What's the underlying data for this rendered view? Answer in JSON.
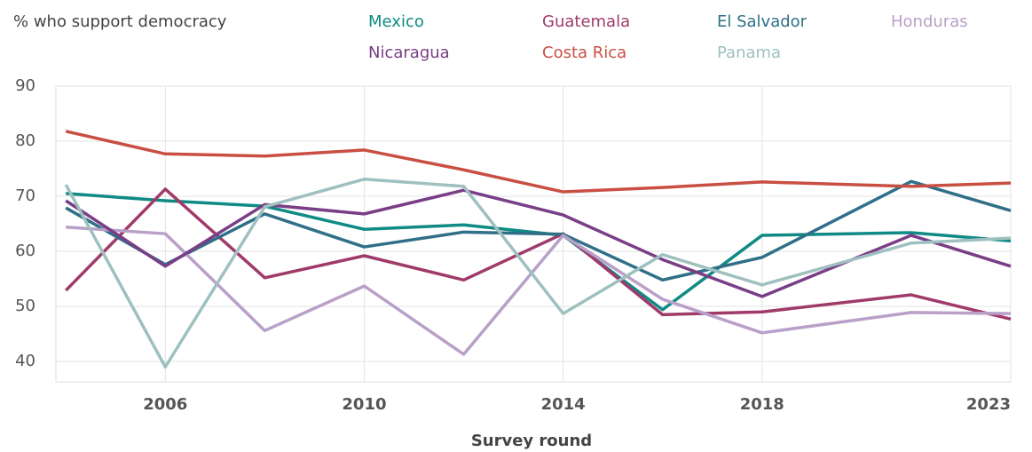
{
  "chart_data": {
    "type": "line",
    "y_axis_label": "% who support democracy",
    "x_axis_label": "Survey round",
    "x": [
      2004,
      2006,
      2008,
      2010,
      2012,
      2014,
      2016,
      2018,
      2021,
      2023
    ],
    "xlim": [
      2003.8,
      2023
    ],
    "xticks": [
      2006,
      2010,
      2014,
      2018,
      2023
    ],
    "ylim": [
      36.3,
      90
    ],
    "yticks": [
      40,
      50,
      60,
      70,
      80,
      90
    ],
    "grid": true,
    "legend": "top",
    "series": [
      {
        "name": "Mexico",
        "color": "#0f8a84",
        "values": [
          70.5,
          69.2,
          68.2,
          64,
          64.8,
          62.9,
          49.4,
          62.9,
          63.4,
          61.9
        ]
      },
      {
        "name": "Guatemala",
        "color": "#a03a6a",
        "values": [
          52.9,
          71.3,
          55.2,
          59.2,
          54.8,
          63.2,
          48.5,
          49,
          52.1,
          47.7
        ]
      },
      {
        "name": "El Salvador",
        "color": "#2f6f88",
        "values": [
          67.9,
          57.6,
          66.8,
          60.8,
          63.5,
          63.1,
          54.8,
          58.9,
          72.7,
          67.4
        ]
      },
      {
        "name": "Honduras",
        "color": "#b9a0c8",
        "values": [
          64.4,
          63.2,
          45.6,
          53.7,
          41.3,
          62.9,
          51.3,
          45.2,
          48.9,
          48.7
        ]
      },
      {
        "name": "Nicaragua",
        "color": "#7a3e86",
        "values": [
          69.2,
          57.3,
          68.5,
          66.8,
          71.1,
          66.6,
          58.5,
          51.8,
          62.9,
          57.3
        ]
      },
      {
        "name": "Costa Rica",
        "color": "#c94f43",
        "values": [
          81.8,
          77.7,
          77.3,
          78.4,
          74.8,
          70.8,
          71.6,
          72.6,
          71.8,
          72.4
        ]
      },
      {
        "name": "Panama",
        "color": "#9fc0c0",
        "values": [
          72.1,
          39,
          68.1,
          73.1,
          71.8,
          48.7,
          59.4,
          53.9,
          61.5,
          62.4
        ]
      }
    ]
  }
}
